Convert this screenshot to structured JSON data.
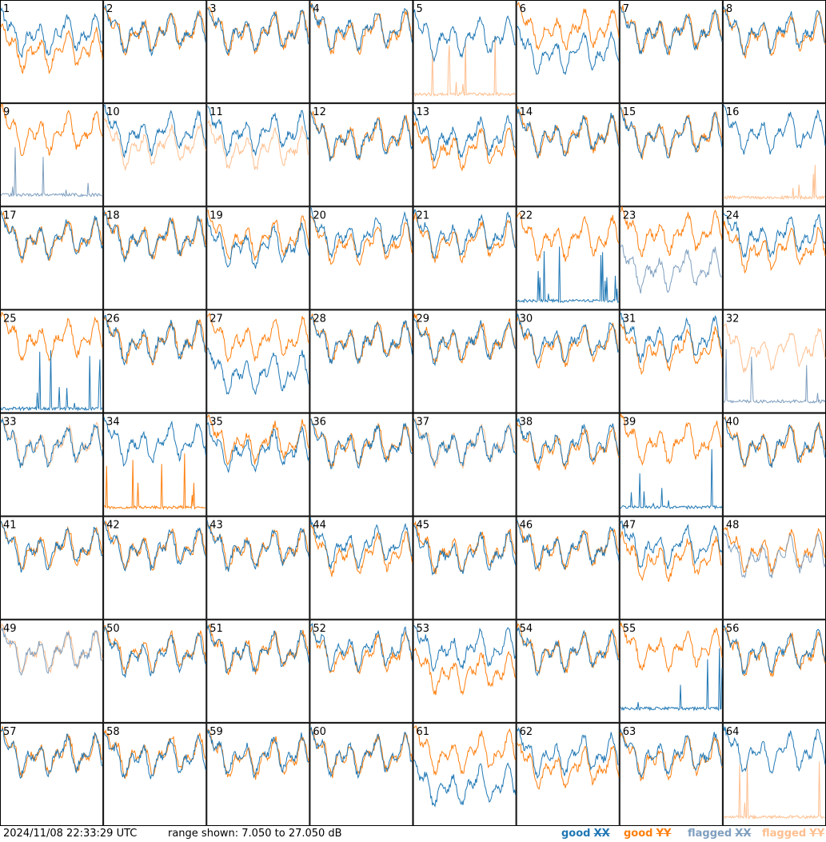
{
  "chart_data": {
    "type": "line",
    "panel_count": 64,
    "panel_labels": [
      "1",
      "2",
      "3",
      "4",
      "5",
      "6",
      "7",
      "8",
      "9",
      "10",
      "11",
      "12",
      "13",
      "14",
      "15",
      "16",
      "17",
      "18",
      "19",
      "20",
      "21",
      "22",
      "23",
      "24",
      "25",
      "26",
      "27",
      "28",
      "29",
      "30",
      "31",
      "32",
      "33",
      "34",
      "35",
      "36",
      "37",
      "38",
      "39",
      "40",
      "41",
      "42",
      "43",
      "44",
      "45",
      "46",
      "47",
      "48",
      "49",
      "50",
      "51",
      "52",
      "53",
      "54",
      "55",
      "56",
      "57",
      "58",
      "59",
      "60",
      "61",
      "62",
      "63",
      "64"
    ],
    "ylim": [
      7.05,
      27.05
    ],
    "yunit": "dB",
    "grid": false,
    "legend_position": "bottom-right",
    "series": [
      {
        "name": "good XX",
        "color": "#1f77b4"
      },
      {
        "name": "good YY",
        "color": "#ff7f0e"
      },
      {
        "name": "flagged XX",
        "color": "#7f9fbf"
      },
      {
        "name": "flagged YY",
        "color": "#ffbf8f"
      }
    ],
    "panels": [
      {
        "id": 1,
        "xx": "good",
        "yy": "good",
        "xx_level": 20.5,
        "yy_level": 17.5
      },
      {
        "id": 2,
        "xx": "good",
        "yy": "good",
        "xx_level": 21,
        "yy_level": 21
      },
      {
        "id": 3,
        "xx": "good",
        "yy": "good",
        "xx_level": 21,
        "yy_level": 21
      },
      {
        "id": 4,
        "xx": "good",
        "yy": "good",
        "xx_level": 21.5,
        "yy_level": 21
      },
      {
        "id": 5,
        "xx": "good",
        "yy": "flagged",
        "xx_level": 20,
        "yy_level": 8.5
      },
      {
        "id": 6,
        "xx": "good",
        "yy": "good",
        "xx_level": 17,
        "yy_level": 21.5
      },
      {
        "id": 7,
        "xx": "good",
        "yy": "good",
        "xx_level": 21,
        "yy_level": 21
      },
      {
        "id": 8,
        "xx": "good",
        "yy": "good",
        "xx_level": 21,
        "yy_level": 20.5
      },
      {
        "id": 9,
        "xx": "flagged",
        "yy": "good",
        "xx_level": 9,
        "yy_level": 21.5
      },
      {
        "id": 10,
        "xx": "good",
        "yy": "flagged",
        "xx_level": 21.5,
        "yy_level": 19
      },
      {
        "id": 11,
        "xx": "good",
        "yy": "flagged",
        "xx_level": 21.5,
        "yy_level": 18.5
      },
      {
        "id": 12,
        "xx": "good",
        "yy": "good",
        "xx_level": 20.5,
        "yy_level": 20.5
      },
      {
        "id": 13,
        "xx": "good",
        "yy": "good",
        "xx_level": 20.5,
        "yy_level": 18.5
      },
      {
        "id": 14,
        "xx": "good",
        "yy": "good",
        "xx_level": 21,
        "yy_level": 21
      },
      {
        "id": 15,
        "xx": "good",
        "yy": "good",
        "xx_level": 21,
        "yy_level": 21
      },
      {
        "id": 16,
        "xx": "good",
        "yy": "flagged",
        "xx_level": 21.5,
        "yy_level": 8.5
      },
      {
        "id": 17,
        "xx": "good",
        "yy": "good",
        "xx_level": 21,
        "yy_level": 21
      },
      {
        "id": 18,
        "xx": "good",
        "yy": "good",
        "xx_level": 21,
        "yy_level": 21
      },
      {
        "id": 19,
        "xx": "good",
        "yy": "good",
        "xx_level": 19.5,
        "yy_level": 21
      },
      {
        "id": 20,
        "xx": "good",
        "yy": "good",
        "xx_level": 21.5,
        "yy_level": 20
      },
      {
        "id": 21,
        "xx": "good",
        "yy": "good",
        "xx_level": 21.5,
        "yy_level": 20.5
      },
      {
        "id": 22,
        "xx": "good",
        "yy": "good",
        "xx_level": 8.5,
        "yy_level": 21
      },
      {
        "id": 23,
        "xx": "flagged",
        "yy": "good",
        "xx_level": 15,
        "yy_level": 22
      },
      {
        "id": 24,
        "xx": "good",
        "yy": "good",
        "xx_level": 21.5,
        "yy_level": 19
      },
      {
        "id": 25,
        "xx": "good",
        "yy": "good",
        "xx_level": 7.6,
        "yy_level": 21.5
      },
      {
        "id": 26,
        "xx": "good",
        "yy": "good",
        "xx_level": 21,
        "yy_level": 21
      },
      {
        "id": 27,
        "xx": "good",
        "yy": "good",
        "xx_level": 15,
        "yy_level": 21.5
      },
      {
        "id": 28,
        "xx": "good",
        "yy": "good",
        "xx_level": 21,
        "yy_level": 21
      },
      {
        "id": 29,
        "xx": "good",
        "yy": "good",
        "xx_level": 21,
        "yy_level": 21
      },
      {
        "id": 30,
        "xx": "good",
        "yy": "good",
        "xx_level": 21,
        "yy_level": 20.5
      },
      {
        "id": 31,
        "xx": "good",
        "yy": "good",
        "xx_level": 21.5,
        "yy_level": 19.5
      },
      {
        "id": 32,
        "xx": "flagged",
        "yy": "flagged",
        "xx_level": 9,
        "yy_level": 19.5
      },
      {
        "id": 33,
        "xx": "good",
        "yy": "flagged",
        "xx_level": 21,
        "yy_level": 21
      },
      {
        "id": 34,
        "xx": "good",
        "yy": "good",
        "xx_level": 21.5,
        "yy_level": 8.5
      },
      {
        "id": 35,
        "xx": "good",
        "yy": "good",
        "xx_level": 20,
        "yy_level": 21.5
      },
      {
        "id": 36,
        "xx": "good",
        "yy": "good",
        "xx_level": 21,
        "yy_level": 21
      },
      {
        "id": 37,
        "xx": "good",
        "yy": "flagged",
        "xx_level": 21,
        "yy_level": 21
      },
      {
        "id": 38,
        "xx": "good",
        "yy": "good",
        "xx_level": 21,
        "yy_level": 20.5
      },
      {
        "id": 39,
        "xx": "good",
        "yy": "good",
        "xx_level": 8.5,
        "yy_level": 21.5
      },
      {
        "id": 40,
        "xx": "good",
        "yy": "good",
        "xx_level": 21,
        "yy_level": 21
      },
      {
        "id": 41,
        "xx": "good",
        "yy": "good",
        "xx_level": 21,
        "yy_level": 21
      },
      {
        "id": 42,
        "xx": "good",
        "yy": "good",
        "xx_level": 21,
        "yy_level": 21
      },
      {
        "id": 43,
        "xx": "good",
        "yy": "good",
        "xx_level": 21,
        "yy_level": 21
      },
      {
        "id": 44,
        "xx": "good",
        "yy": "good",
        "xx_level": 21.5,
        "yy_level": 20
      },
      {
        "id": 45,
        "xx": "good",
        "yy": "good",
        "xx_level": 20,
        "yy_level": 20.5
      },
      {
        "id": 46,
        "xx": "good",
        "yy": "good",
        "xx_level": 21,
        "yy_level": 21
      },
      {
        "id": 47,
        "xx": "good",
        "yy": "good",
        "xx_level": 21.5,
        "yy_level": 19
      },
      {
        "id": 48,
        "xx": "flagged",
        "yy": "good",
        "xx_level": 19.5,
        "yy_level": 20.5
      },
      {
        "id": 49,
        "xx": "flagged",
        "yy": "flagged",
        "xx_level": 21,
        "yy_level": 21
      },
      {
        "id": 50,
        "xx": "good",
        "yy": "good",
        "xx_level": 20.5,
        "yy_level": 21
      },
      {
        "id": 51,
        "xx": "good",
        "yy": "good",
        "xx_level": 21,
        "yy_level": 21
      },
      {
        "id": 52,
        "xx": "good",
        "yy": "good",
        "xx_level": 21.5,
        "yy_level": 20.5
      },
      {
        "id": 53,
        "xx": "good",
        "yy": "good",
        "xx_level": 21.5,
        "yy_level": 17
      },
      {
        "id": 54,
        "xx": "good",
        "yy": "good",
        "xx_level": 21,
        "yy_level": 21
      },
      {
        "id": 55,
        "xx": "good",
        "yy": "good",
        "xx_level": 9.5,
        "yy_level": 21.5
      },
      {
        "id": 56,
        "xx": "good",
        "yy": "good",
        "xx_level": 21,
        "yy_level": 20.5
      },
      {
        "id": 57,
        "xx": "good",
        "yy": "good",
        "xx_level": 21,
        "yy_level": 21
      },
      {
        "id": 58,
        "xx": "good",
        "yy": "good",
        "xx_level": 20.5,
        "yy_level": 21
      },
      {
        "id": 59,
        "xx": "good",
        "yy": "good",
        "xx_level": 21,
        "yy_level": 20.5
      },
      {
        "id": 60,
        "xx": "good",
        "yy": "good",
        "xx_level": 21,
        "yy_level": 21
      },
      {
        "id": 61,
        "xx": "good",
        "yy": "good",
        "xx_level": 15,
        "yy_level": 21.5
      },
      {
        "id": 62,
        "xx": "good",
        "yy": "good",
        "xx_level": 21,
        "yy_level": 18.5
      },
      {
        "id": 63,
        "xx": "good",
        "yy": "good",
        "xx_level": 21,
        "yy_level": 20.5
      },
      {
        "id": 64,
        "xx": "good",
        "yy": "flagged",
        "xx_level": 21.5,
        "yy_level": 8.5
      }
    ]
  },
  "footer": {
    "timestamp": "2024/11/08 22:33:29 UTC",
    "range_text": "range shown: 7.050 to 27.050 dB",
    "legend": [
      {
        "label": "good",
        "box": "XX",
        "color": "#1f77b4"
      },
      {
        "label": "good",
        "box": "YY",
        "color": "#ff7f0e"
      },
      {
        "label": "flagged",
        "box": "XX",
        "color": "#7f9fbf"
      },
      {
        "label": "flagged",
        "box": "YY",
        "color": "#ffbf8f"
      }
    ]
  }
}
